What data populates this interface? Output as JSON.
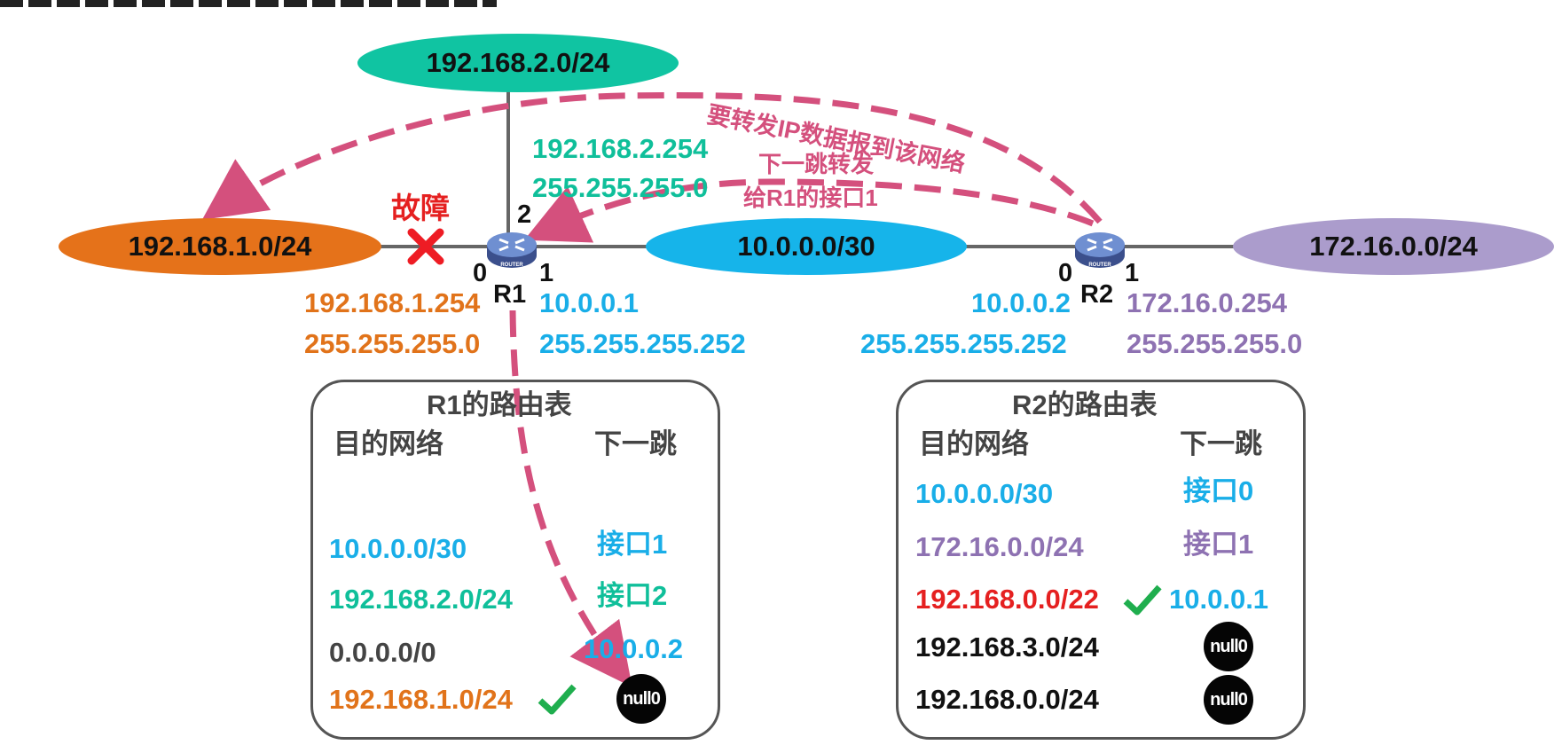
{
  "networks": {
    "net_2": "192.168.2.0/24",
    "net_1": "192.168.1.0/24",
    "net_10": "10.0.0.0/30",
    "net_172": "172.16.0.0/24"
  },
  "annotations": {
    "forward_to_network": "要转发IP数据报到该网络",
    "next_hop_line1": "下一跳转发",
    "next_hop_line2": "给R1的接口1",
    "failure": "故障"
  },
  "routers": {
    "r1": {
      "name": "R1",
      "port0": "0",
      "port1": "1",
      "port2": "2",
      "if0_ip": "192.168.1.254",
      "if0_mask": "255.255.255.0",
      "if1_ip": "10.0.0.1",
      "if1_mask": "255.255.255.252",
      "if2_ip": "192.168.2.254",
      "if2_mask": "255.255.255.0"
    },
    "r2": {
      "name": "R2",
      "port0": "0",
      "port1": "1",
      "if0_ip": "10.0.0.2",
      "if0_mask": "255.255.255.252",
      "if1_ip": "172.16.0.254",
      "if1_mask": "255.255.255.0"
    }
  },
  "r1_table": {
    "title": "R1的路由表",
    "col_dest": "目的网络",
    "col_next": "下一跳",
    "rows": [
      {
        "dest": "10.0.0.0/30",
        "next": "接口1"
      },
      {
        "dest": "192.168.2.0/24",
        "next": "接口2"
      },
      {
        "dest": "0.0.0.0/0",
        "next": "10.0.0.2"
      },
      {
        "dest": "192.168.1.0/24",
        "next": "null0"
      }
    ]
  },
  "r2_table": {
    "title": "R2的路由表",
    "col_dest": "目的网络",
    "col_next": "下一跳",
    "rows": [
      {
        "dest": "10.0.0.0/30",
        "next": "接口0"
      },
      {
        "dest": "172.16.0.0/24",
        "next": "接口1"
      },
      {
        "dest": "192.168.0.0/22",
        "next": "10.0.0.1"
      },
      {
        "dest": "192.168.3.0/24",
        "next": "null0"
      },
      {
        "dest": "192.168.0.0/24",
        "next": "null0"
      }
    ]
  },
  "colors": {
    "green": "#0fbf9a",
    "blue": "#19aee8",
    "orange": "#e1731a",
    "purple": "#8e72b2",
    "red": "#e52020",
    "pink": "#d4507d",
    "check": "#1fae4e"
  },
  "icons": [
    "router-icon",
    "failure-x-icon",
    "checkmark-icon"
  ]
}
